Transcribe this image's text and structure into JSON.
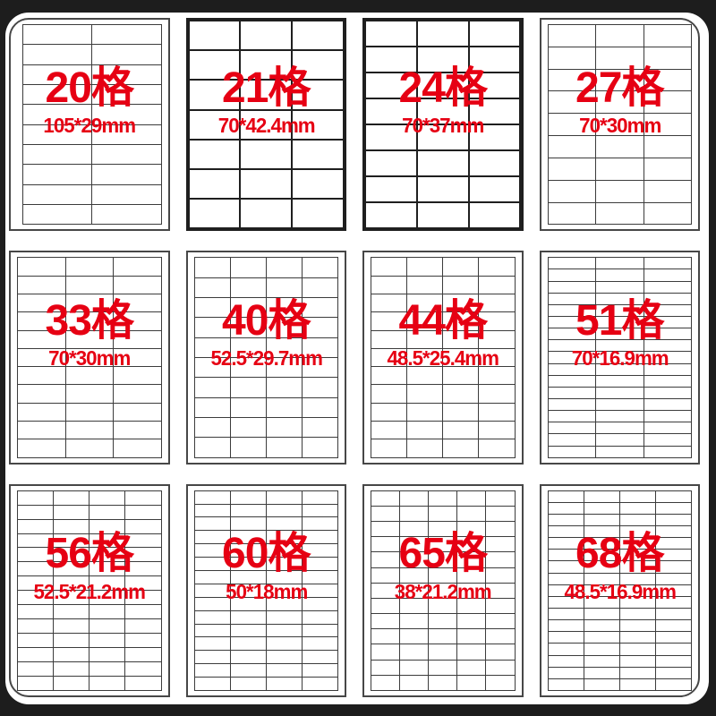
{
  "colors": {
    "accent_red": "#e60013",
    "frame_background": "#1d1d1d",
    "sheet_background": "#ffffff",
    "grid_line": "#3c3c3c"
  },
  "collage": {
    "layout_columns": 4,
    "layout_rows": 3,
    "tiles": [
      {
        "label": "20格",
        "size": "105*29mm",
        "grid_cols": 2,
        "grid_rows": 10
      },
      {
        "label": "21格",
        "size": "70*42.4mm",
        "grid_cols": 3,
        "grid_rows": 7
      },
      {
        "label": "24格",
        "size": "70*37mm",
        "grid_cols": 3,
        "grid_rows": 8
      },
      {
        "label": "27格",
        "size": "70*30mm",
        "grid_cols": 3,
        "grid_rows": 9
      },
      {
        "label": "33格",
        "size": "70*30mm",
        "grid_cols": 3,
        "grid_rows": 11
      },
      {
        "label": "40格",
        "size": "52.5*29.7mm",
        "grid_cols": 4,
        "grid_rows": 10
      },
      {
        "label": "44格",
        "size": "48.5*25.4mm",
        "grid_cols": 4,
        "grid_rows": 11
      },
      {
        "label": "51格",
        "size": "70*16.9mm",
        "grid_cols": 3,
        "grid_rows": 17
      },
      {
        "label": "56格",
        "size": "52.5*21.2mm",
        "grid_cols": 4,
        "grid_rows": 14
      },
      {
        "label": "60格",
        "size": "50*18mm",
        "grid_cols": 4,
        "grid_rows": 15
      },
      {
        "label": "65格",
        "size": "38*21.2mm",
        "grid_cols": 5,
        "grid_rows": 13
      },
      {
        "label": "68格",
        "size": "48.5*16.9mm",
        "grid_cols": 4,
        "grid_rows": 17
      }
    ]
  }
}
